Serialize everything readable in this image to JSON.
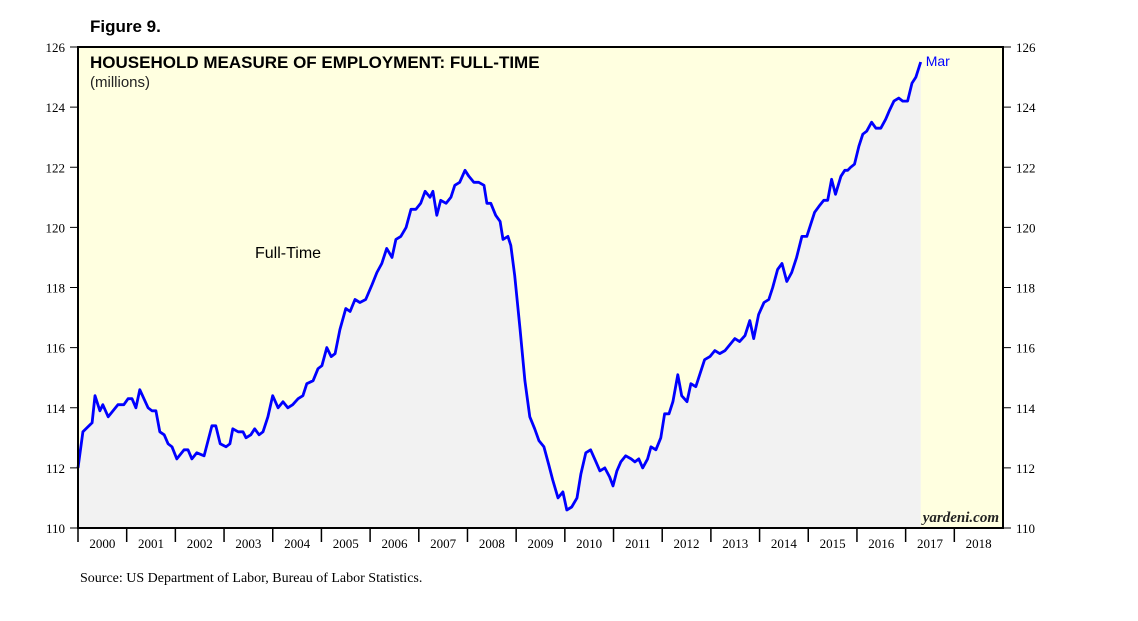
{
  "chart_data": {
    "type": "line",
    "figure_label": "Figure 9.",
    "title": "HOUSEHOLD MEASURE OF EMPLOYMENT: FULL-TIME",
    "subtitle": "(millions)",
    "end_label": "Mar",
    "watermark": "yardeni.com",
    "source": "Source: US Department of Labor, Bureau of Labor Statistics.",
    "xlim": [
      2000,
      2019
    ],
    "xticks": [
      2000,
      2001,
      2002,
      2003,
      2004,
      2005,
      2006,
      2007,
      2008,
      2009,
      2010,
      2011,
      2012,
      2013,
      2014,
      2015,
      2016,
      2017,
      2018
    ],
    "ylim": [
      110,
      126
    ],
    "yticks": [
      110,
      112,
      114,
      116,
      118,
      120,
      122,
      124,
      126
    ],
    "y_axis_both_sides": true,
    "grid": false,
    "plot_background": "#ffffe0",
    "area_fill": "#f2f2f2",
    "x": [
      2000.0,
      2000.1,
      2000.29,
      2000.35,
      2000.45,
      2000.51,
      2000.62,
      2000.82,
      2000.94,
      2001.03,
      2001.11,
      2001.19,
      2001.27,
      2001.44,
      2001.52,
      2001.6,
      2001.68,
      2001.77,
      2001.85,
      2001.93,
      2002.03,
      2002.18,
      2002.26,
      2002.34,
      2002.44,
      2002.59,
      2002.75,
      2002.83,
      2002.92,
      2003.04,
      2003.12,
      2003.18,
      2003.29,
      2003.39,
      2003.45,
      2003.55,
      2003.63,
      2003.72,
      2003.8,
      2003.9,
      2004.0,
      2004.11,
      2004.21,
      2004.31,
      2004.41,
      2004.52,
      2004.62,
      2004.7,
      2004.83,
      2004.93,
      2005.01,
      2005.11,
      2005.2,
      2005.28,
      2005.38,
      2005.5,
      2005.59,
      2005.69,
      2005.79,
      2005.91,
      2006.04,
      2006.14,
      2006.24,
      2006.34,
      2006.45,
      2006.53,
      2006.63,
      2006.74,
      2006.84,
      2006.94,
      2007.04,
      2007.13,
      2007.23,
      2007.29,
      2007.37,
      2007.45,
      2007.56,
      2007.66,
      2007.74,
      2007.84,
      2007.95,
      2008.03,
      2008.13,
      2008.23,
      2008.34,
      2008.4,
      2008.48,
      2008.58,
      2008.67,
      2008.73,
      2008.83,
      2008.89,
      2008.97,
      2009.08,
      2009.18,
      2009.28,
      2009.38,
      2009.47,
      2009.57,
      2009.67,
      2009.75,
      2009.86,
      2009.96,
      2010.04,
      2010.14,
      2010.25,
      2010.33,
      2010.43,
      2010.53,
      2010.64,
      2010.72,
      2010.82,
      2010.92,
      2010.99,
      2011.07,
      2011.15,
      2011.25,
      2011.36,
      2011.44,
      2011.52,
      2011.6,
      2011.7,
      2011.77,
      2011.87,
      2011.97,
      2012.05,
      2012.14,
      2012.22,
      2012.32,
      2012.4,
      2012.51,
      2012.59,
      2012.69,
      2012.77,
      2012.87,
      2012.98,
      2013.08,
      2013.18,
      2013.29,
      2013.39,
      2013.49,
      2013.59,
      2013.7,
      2013.8,
      2013.88,
      2013.98,
      2014.09,
      2014.19,
      2014.27,
      2014.37,
      2014.46,
      2014.56,
      2014.66,
      2014.76,
      2014.87,
      2014.97,
      2015.03,
      2015.13,
      2015.22,
      2015.32,
      2015.4,
      2015.48,
      2015.56,
      2015.67,
      2015.75,
      2015.81,
      2015.87,
      2015.95,
      2016.04,
      2016.12,
      2016.2,
      2016.3,
      2016.39,
      2016.49,
      2016.59,
      2016.67,
      2016.76,
      2016.86,
      2016.94,
      2017.04,
      2017.13,
      2017.21,
      2017.31
    ],
    "series": [
      {
        "name": "Full-Time",
        "color": "#0000ff",
        "values": [
          112.0,
          113.2,
          113.5,
          114.4,
          113.9,
          114.1,
          113.7,
          114.1,
          114.1,
          114.3,
          114.3,
          114.0,
          114.6,
          114.0,
          113.9,
          113.9,
          113.2,
          113.1,
          112.8,
          112.7,
          112.3,
          112.6,
          112.6,
          112.3,
          112.5,
          112.4,
          113.4,
          113.4,
          112.8,
          112.7,
          112.8,
          113.3,
          113.2,
          113.2,
          113.0,
          113.1,
          113.3,
          113.1,
          113.2,
          113.7,
          114.4,
          114.0,
          114.2,
          114.0,
          114.1,
          114.3,
          114.4,
          114.8,
          114.9,
          115.3,
          115.4,
          116.0,
          115.7,
          115.8,
          116.6,
          117.3,
          117.2,
          117.6,
          117.5,
          117.6,
          118.1,
          118.5,
          118.8,
          119.3,
          119.0,
          119.6,
          119.7,
          120.0,
          120.6,
          120.6,
          120.8,
          121.2,
          121.0,
          121.2,
          120.4,
          120.9,
          120.8,
          121.0,
          121.4,
          121.5,
          121.9,
          121.7,
          121.5,
          121.5,
          121.4,
          120.8,
          120.8,
          120.4,
          120.2,
          119.6,
          119.7,
          119.4,
          118.4,
          116.6,
          114.9,
          113.7,
          113.3,
          112.9,
          112.7,
          112.1,
          111.6,
          111.0,
          111.2,
          110.6,
          110.7,
          111.0,
          111.8,
          112.5,
          112.6,
          112.2,
          111.9,
          112.0,
          111.7,
          111.4,
          111.9,
          112.2,
          112.4,
          112.3,
          112.2,
          112.3,
          112.0,
          112.3,
          112.7,
          112.6,
          113.0,
          113.8,
          113.8,
          114.2,
          115.1,
          114.4,
          114.2,
          114.8,
          114.7,
          115.1,
          115.6,
          115.7,
          115.9,
          115.8,
          115.9,
          116.1,
          116.3,
          116.2,
          116.4,
          116.9,
          116.3,
          117.1,
          117.5,
          117.6,
          118.0,
          118.6,
          118.8,
          118.2,
          118.5,
          119.0,
          119.7,
          119.7,
          120.0,
          120.5,
          120.7,
          120.9,
          120.9,
          121.6,
          121.1,
          121.7,
          121.9,
          121.9,
          122.0,
          122.1,
          122.7,
          123.1,
          123.2,
          123.5,
          123.3,
          123.3,
          123.6,
          123.9,
          124.2,
          124.3,
          124.2,
          124.2,
          124.8,
          125.0,
          125.5
        ]
      }
    ]
  }
}
